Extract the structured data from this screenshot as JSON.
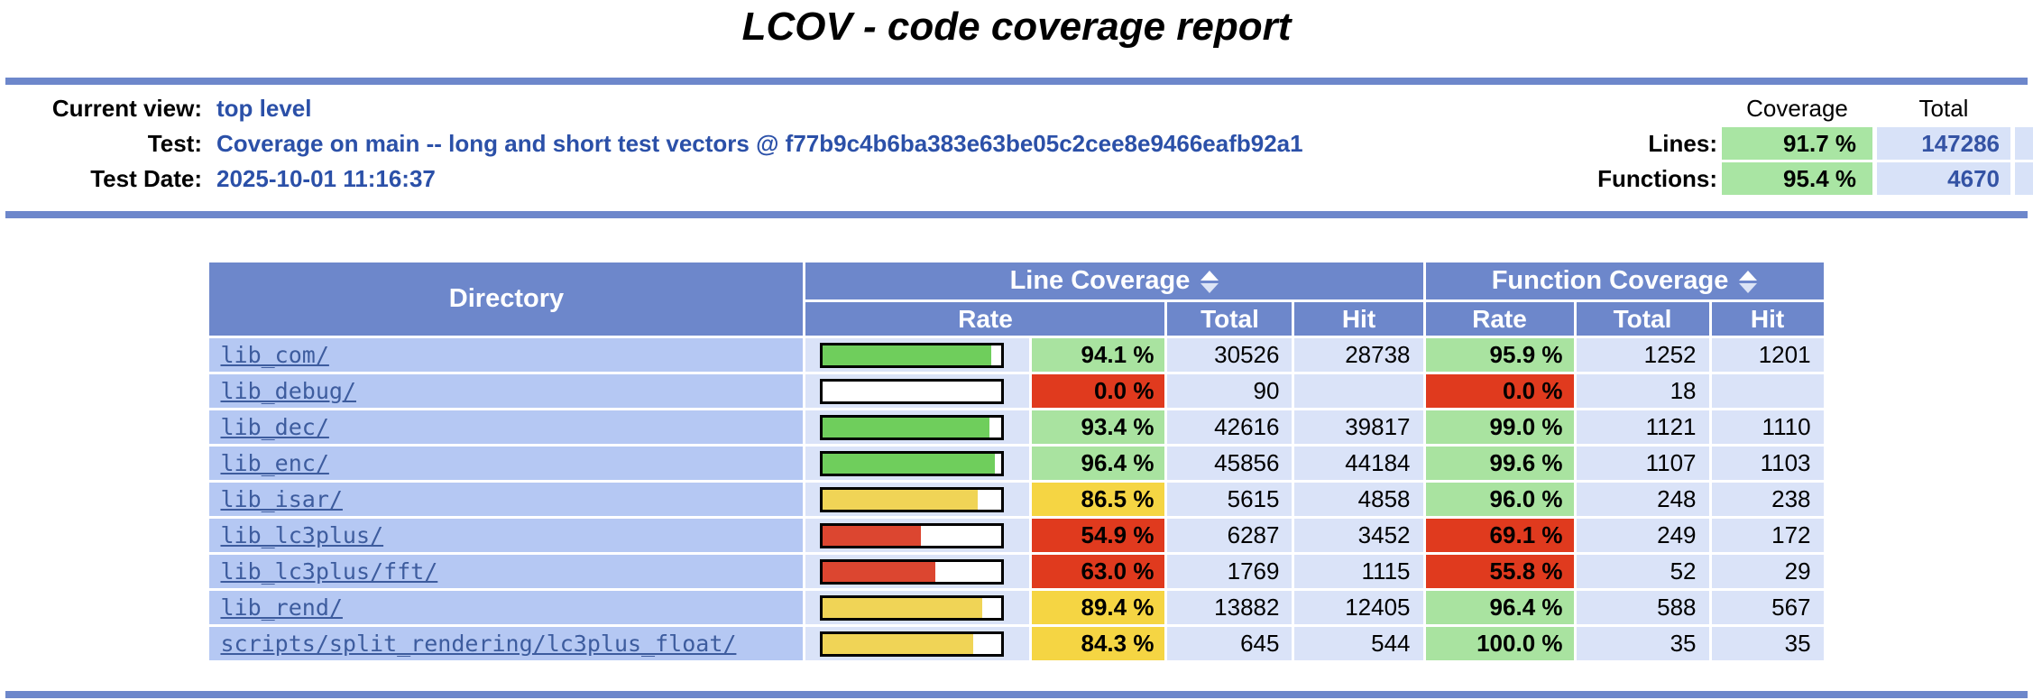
{
  "page": {
    "title": "LCOV - code coverage report"
  },
  "header": {
    "rows": [
      {
        "label": "Current view:",
        "value": "top level"
      },
      {
        "label": "Test:",
        "value": "Coverage on main -- long and short test vectors @ f77b9c4b6ba383e63be05c2cee8e9466eafb92a1"
      },
      {
        "label": "Test Date:",
        "value": "2025-10-01 11:16:37"
      }
    ],
    "metrics": {
      "col_coverage": "Coverage",
      "col_total": "Total",
      "lines_label": "Lines:",
      "lines_coverage": "91.7 %",
      "lines_total": "147286",
      "functions_label": "Functions:",
      "functions_coverage": "95.4 %",
      "functions_total": "4670"
    }
  },
  "table": {
    "directory_header": "Directory",
    "line_coverage_header": "Line Coverage",
    "function_coverage_header": "Function Coverage",
    "subheaders": {
      "rate": "Rate",
      "total": "Total",
      "hit": "Hit"
    },
    "rows": [
      {
        "directory": "lib_com/",
        "line_rate": "94.1 %",
        "line_rate_pct": 94.1,
        "line_level": "hi",
        "line_total": "30526",
        "line_hit": "28738",
        "func_rate": "95.9 %",
        "func_level": "hi",
        "func_total": "1252",
        "func_hit": "1201"
      },
      {
        "directory": "lib_debug/",
        "line_rate": "0.0 %",
        "line_rate_pct": 0,
        "line_level": "lo",
        "line_total": "90",
        "line_hit": "",
        "func_rate": "0.0 %",
        "func_level": "lo",
        "func_total": "18",
        "func_hit": ""
      },
      {
        "directory": "lib_dec/",
        "line_rate": "93.4 %",
        "line_rate_pct": 93.4,
        "line_level": "hi",
        "line_total": "42616",
        "line_hit": "39817",
        "func_rate": "99.0 %",
        "func_level": "hi",
        "func_total": "1121",
        "func_hit": "1110"
      },
      {
        "directory": "lib_enc/",
        "line_rate": "96.4 %",
        "line_rate_pct": 96.4,
        "line_level": "hi",
        "line_total": "45856",
        "line_hit": "44184",
        "func_rate": "99.6 %",
        "func_level": "hi",
        "func_total": "1107",
        "func_hit": "1103"
      },
      {
        "directory": "lib_isar/",
        "line_rate": "86.5 %",
        "line_rate_pct": 86.5,
        "line_level": "med",
        "line_total": "5615",
        "line_hit": "4858",
        "func_rate": "96.0 %",
        "func_level": "hi",
        "func_total": "248",
        "func_hit": "238"
      },
      {
        "directory": "lib_lc3plus/",
        "line_rate": "54.9 %",
        "line_rate_pct": 54.9,
        "line_level": "lo",
        "line_total": "6287",
        "line_hit": "3452",
        "func_rate": "69.1 %",
        "func_level": "lo",
        "func_total": "249",
        "func_hit": "172"
      },
      {
        "directory": "lib_lc3plus/fft/",
        "line_rate": "63.0 %",
        "line_rate_pct": 63.0,
        "line_level": "lo",
        "line_total": "1769",
        "line_hit": "1115",
        "func_rate": "55.8 %",
        "func_level": "lo",
        "func_total": "52",
        "func_hit": "29"
      },
      {
        "directory": "lib_rend/",
        "line_rate": "89.4 %",
        "line_rate_pct": 89.4,
        "line_level": "med",
        "line_total": "13882",
        "line_hit": "12405",
        "func_rate": "96.4 %",
        "func_level": "hi",
        "func_total": "588",
        "func_hit": "567"
      },
      {
        "directory": "scripts/split_rendering/lc3plus_float/",
        "line_rate": "84.3 %",
        "line_rate_pct": 84.3,
        "line_level": "med",
        "line_total": "645",
        "line_hit": "544",
        "func_rate": "100.0 %",
        "func_level": "hi",
        "func_total": "35",
        "func_hit": "35"
      }
    ]
  },
  "colors": {
    "accent_blue": "#6D87CB",
    "directory_cell": "#B5C8F3",
    "numeric_cell": "#DAE3F8",
    "coverage_high": "#A9E3A0",
    "coverage_medium": "#F5D543",
    "coverage_low": "#E03A1E",
    "bar_high": "#6FCE5C",
    "bar_medium": "#F0D456",
    "bar_low": "#DC4630",
    "link_blue": "#3D5C9E",
    "header_value_blue": "#2B50A8"
  }
}
